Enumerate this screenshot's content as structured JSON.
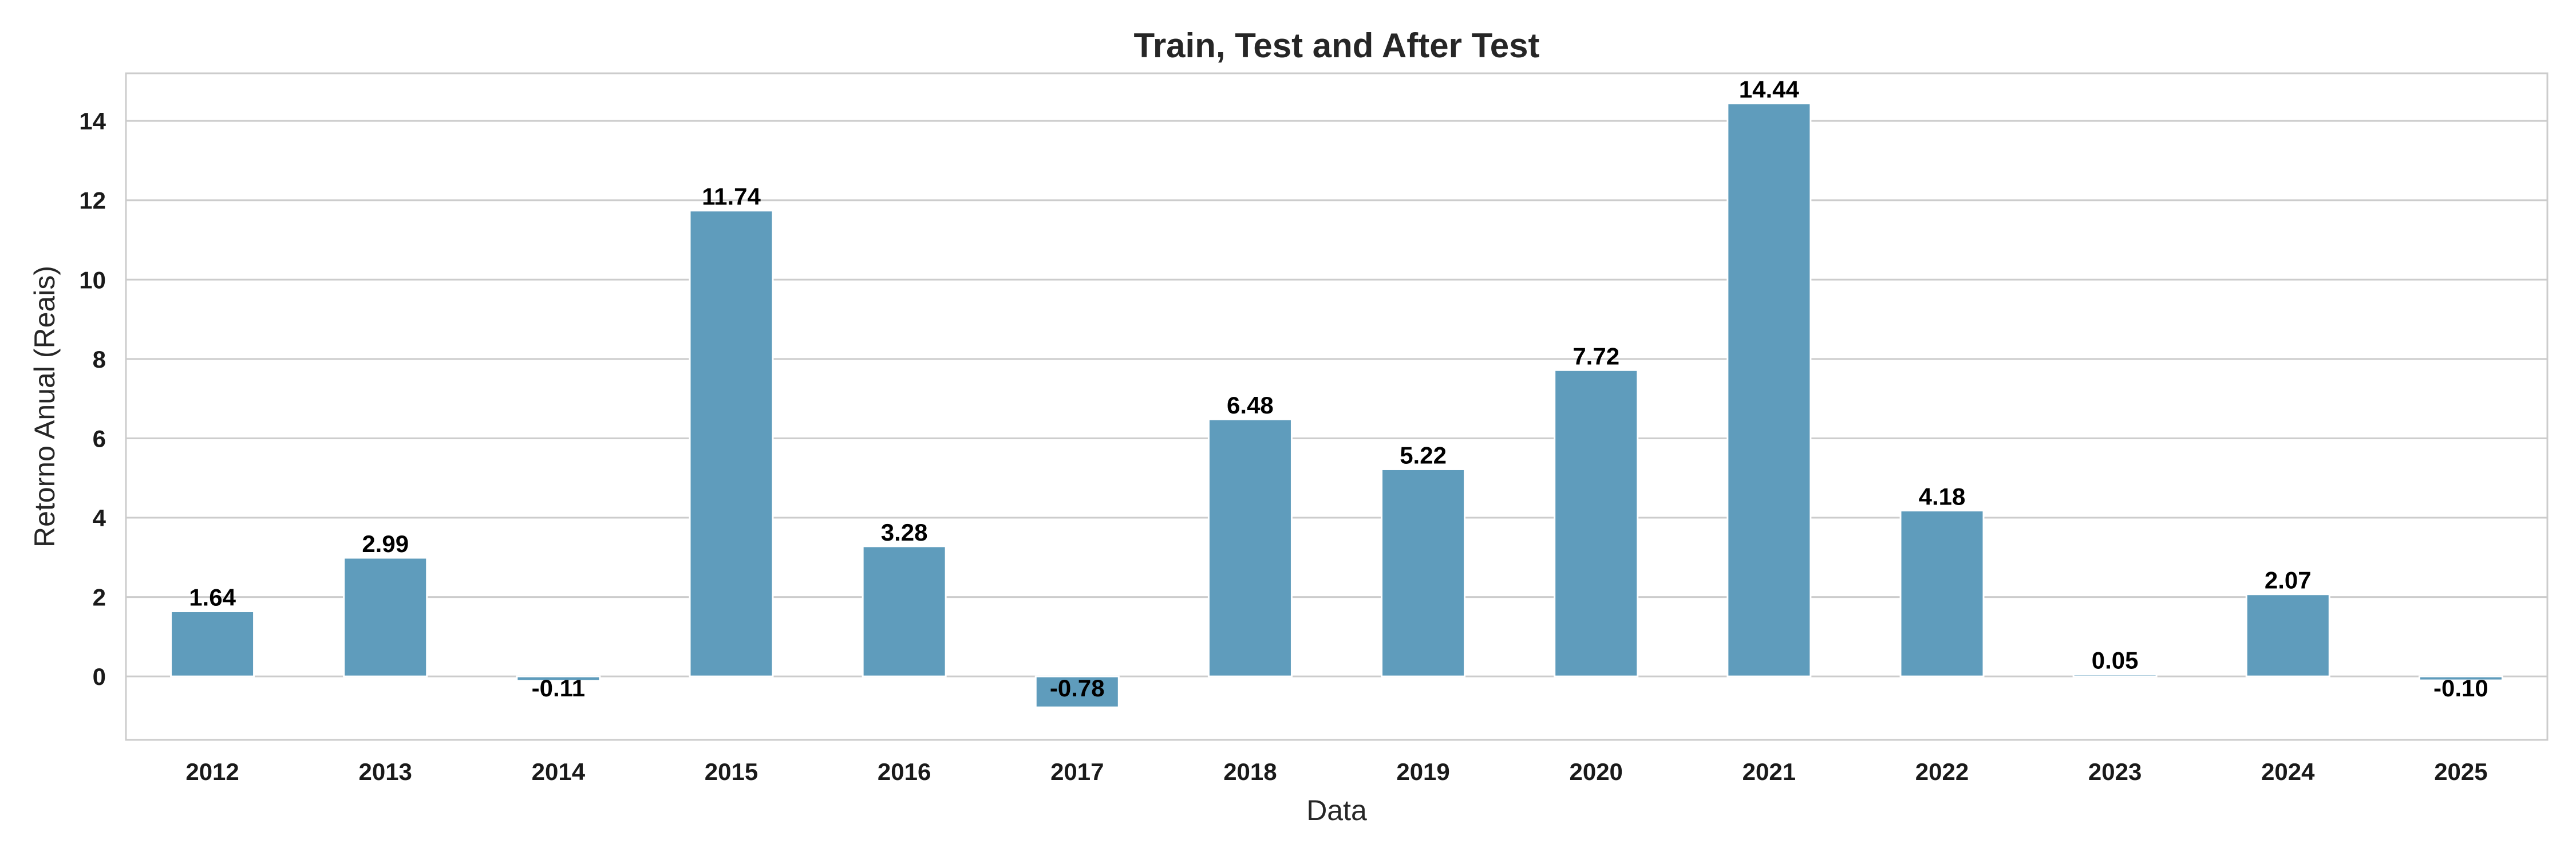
{
  "chart_data": {
    "type": "bar",
    "title": "Train, Test and After Test",
    "xlabel": "Data",
    "ylabel": "Retorno Anual (Reais)",
    "categories": [
      "2012",
      "2013",
      "2014",
      "2015",
      "2016",
      "2017",
      "2018",
      "2019",
      "2020",
      "2021",
      "2022",
      "2023",
      "2024",
      "2025"
    ],
    "values": [
      1.64,
      2.99,
      -0.11,
      11.74,
      3.28,
      -0.78,
      6.48,
      5.22,
      7.72,
      14.44,
      4.18,
      0.05,
      2.07,
      -0.1
    ],
    "value_labels": [
      "1.64",
      "2.99",
      "-0.11",
      "11.74",
      "3.28",
      "-0.78",
      "6.48",
      "5.22",
      "7.72",
      "14.44",
      "4.18",
      "0.05",
      "2.07",
      "-0.10"
    ],
    "ylim": [
      -1.6,
      15.2
    ],
    "yticks": [
      0,
      2,
      4,
      6,
      8,
      10,
      12,
      14
    ],
    "grid": true,
    "bar_color": "#5f9cbc",
    "legend": null
  }
}
